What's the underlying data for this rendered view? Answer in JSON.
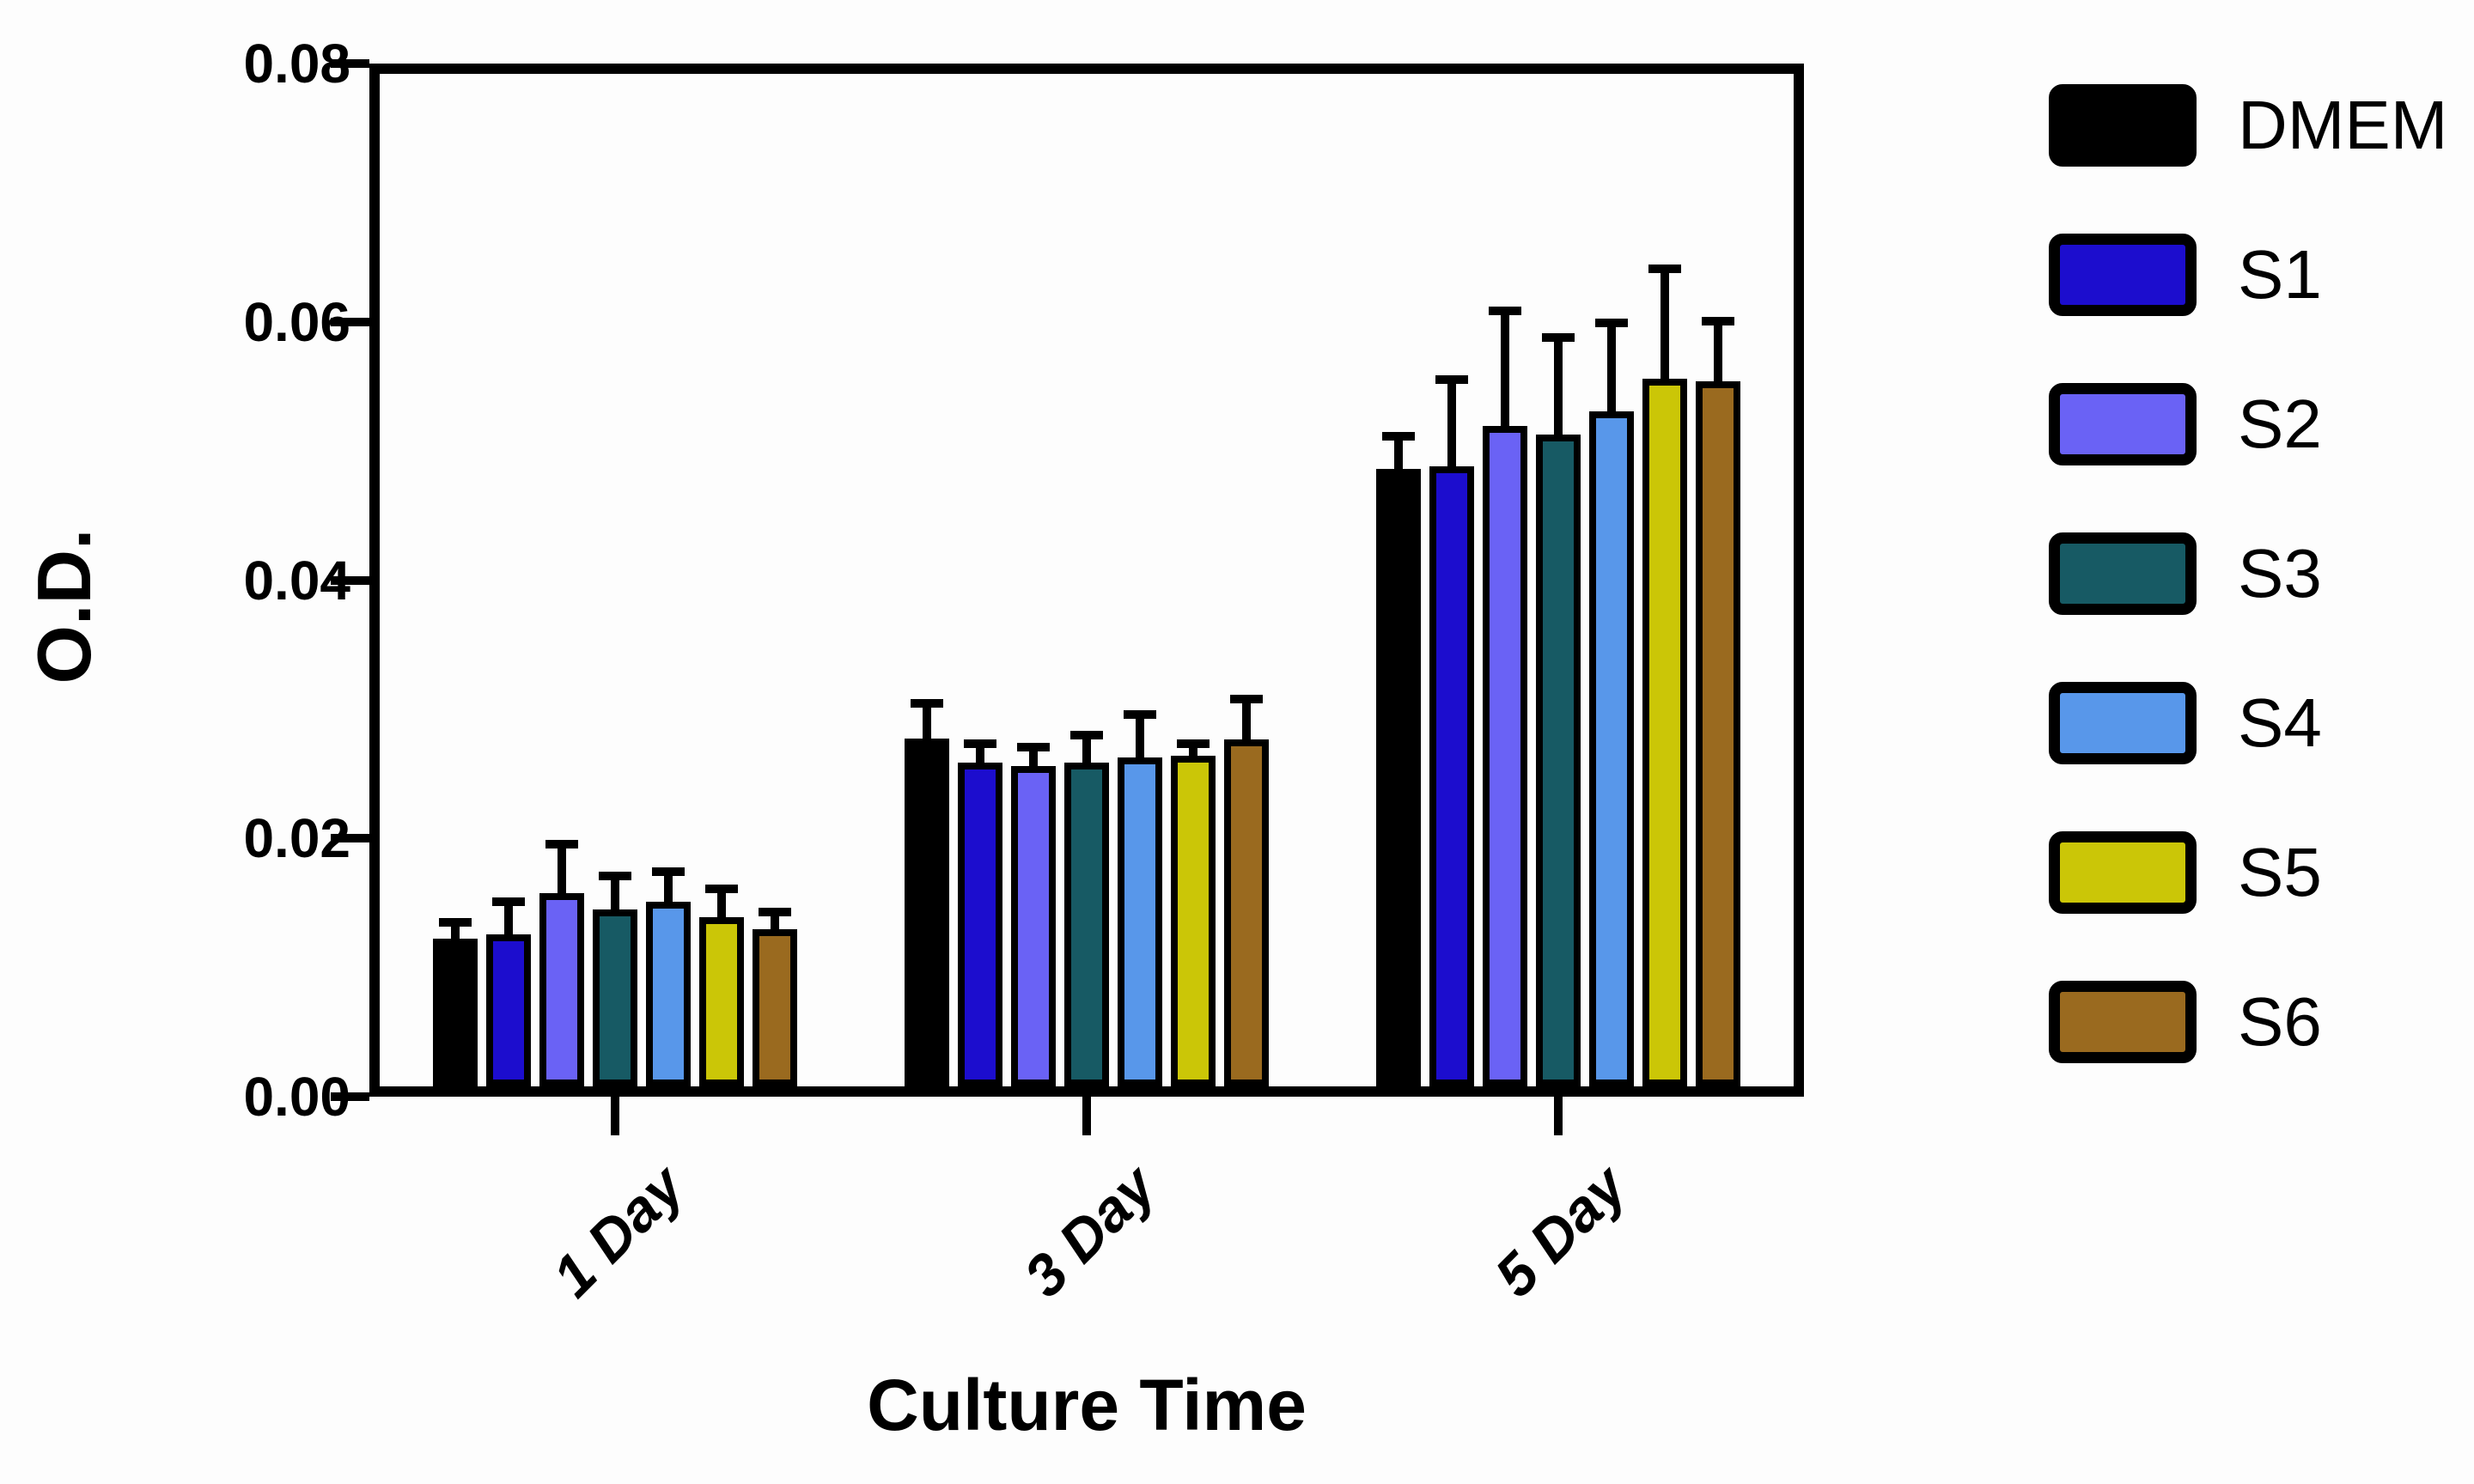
{
  "chart_data": {
    "type": "bar",
    "title": "",
    "categories": [
      "1 Day",
      "3 Day",
      "5 Day"
    ],
    "xlabel": "Culture Time",
    "ylabel": "O.D.",
    "ylim": [
      0,
      0.08
    ],
    "y_ticks": [
      0,
      0.02,
      0.04,
      0.06,
      0.08
    ],
    "y_tick_labels": [
      "0.00",
      "0.02",
      "0.04",
      "0.06",
      "0.08"
    ],
    "grid": false,
    "legend_position": "right-top",
    "error_bars": "upper-only",
    "bar_outline_color": "#000000",
    "series": [
      {
        "name": "DMEM",
        "color": "#000000",
        "values": [
          0.0117,
          0.0275,
          0.0488
        ],
        "errors": [
          0.0016,
          0.0031,
          0.0029
        ]
      },
      {
        "name": "S1",
        "color": "#1C0DCE",
        "values": [
          0.012,
          0.0256,
          0.049
        ],
        "errors": [
          0.0029,
          0.0018,
          0.0072
        ]
      },
      {
        "name": "S2",
        "color": "#6A62F5",
        "values": [
          0.0153,
          0.0253,
          0.0522
        ],
        "errors": [
          0.0042,
          0.0018,
          0.0094
        ]
      },
      {
        "name": "S3",
        "color": "#175A64",
        "values": [
          0.014,
          0.0256,
          0.0515
        ],
        "errors": [
          0.003,
          0.0025,
          0.008
        ]
      },
      {
        "name": "S4",
        "color": "#5897EA",
        "values": [
          0.0146,
          0.026,
          0.0533
        ],
        "errors": [
          0.0027,
          0.0037,
          0.0073
        ]
      },
      {
        "name": "S5",
        "color": "#CBC607",
        "values": [
          0.0134,
          0.0261,
          0.0559
        ],
        "errors": [
          0.0026,
          0.0013,
          0.009
        ]
      },
      {
        "name": "S6",
        "color": "#9A6A1F",
        "values": [
          0.0124,
          0.0274,
          0.0557
        ],
        "errors": [
          0.0017,
          0.0035,
          0.0051
        ]
      }
    ]
  }
}
